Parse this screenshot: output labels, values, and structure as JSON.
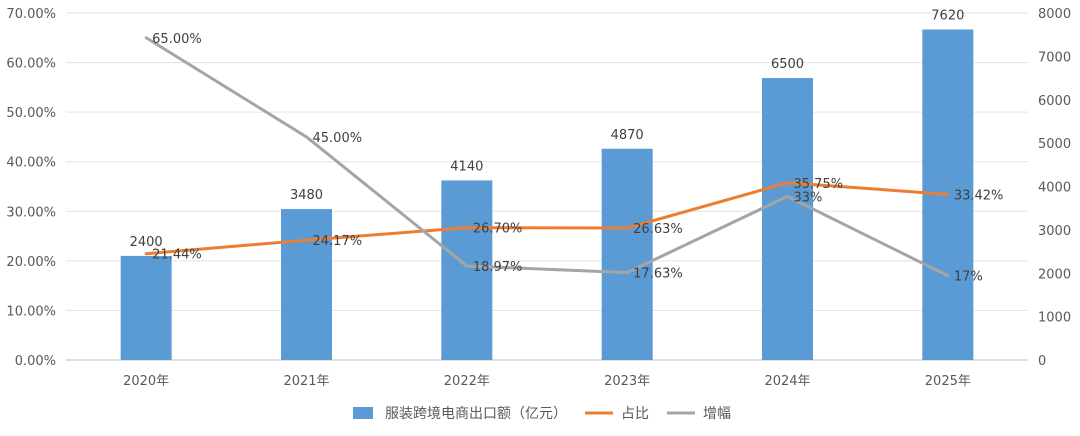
{
  "chart_data": {
    "type": "bar",
    "categories": [
      "2020年",
      "2021年",
      "2022年",
      "2023年",
      "2024年",
      "2025年"
    ],
    "series": [
      {
        "name": "服装跨境电商出口额（亿元）",
        "kind": "bar",
        "axis": "right",
        "values": [
          2400,
          3480,
          4140,
          4870,
          6500,
          7620
        ],
        "labels": [
          "2400",
          "3480",
          "4140",
          "4870",
          "6500",
          "7620"
        ],
        "color": "#5B9BD5"
      },
      {
        "name": "占比",
        "kind": "line",
        "axis": "left",
        "values": [
          0.2144,
          0.2417,
          0.267,
          0.2663,
          0.3575,
          0.3342
        ],
        "labels": [
          "21.44%",
          "24.17%",
          "26.70%",
          "26.63%",
          "35.75%",
          "33.42%"
        ],
        "color": "#ED7D31"
      },
      {
        "name": "增幅",
        "kind": "line",
        "axis": "left",
        "values": [
          0.65,
          0.45,
          0.1897,
          0.1763,
          0.33,
          0.17
        ],
        "labels": [
          "65.00%",
          "45.00%",
          "18.97%",
          "17.63%",
          "33%",
          "17%"
        ],
        "color": "#A5A5A5"
      }
    ],
    "y_left": {
      "ylim": [
        0,
        0.7
      ],
      "ticks": [
        "0.00%",
        "10.00%",
        "20.00%",
        "30.00%",
        "40.00%",
        "50.00%",
        "60.00%",
        "70.00%"
      ]
    },
    "y_right": {
      "ylim": [
        0,
        8000
      ],
      "ticks": [
        "0",
        "1000",
        "2000",
        "3000",
        "4000",
        "5000",
        "6000",
        "7000",
        "8000"
      ]
    },
    "grid": true,
    "legend": "bottom"
  }
}
